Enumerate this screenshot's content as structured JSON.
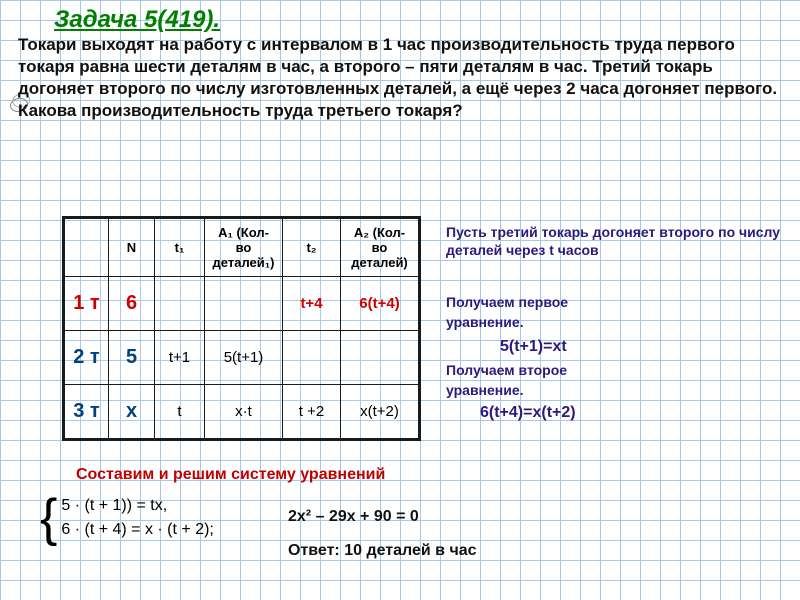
{
  "colors": {
    "title": "#008000",
    "problem_text": "#111111",
    "row1_label": "#d00000",
    "row2_label": "#004080",
    "row3_label": "#004080",
    "note_purple": "#2a1a7a",
    "eqn_purple": "#2a1a7a",
    "cell_red": "#d00000",
    "cell_blue_bold": "#004080",
    "compose": "#c00000",
    "answer": "#111111",
    "grid": "#a8c8e8"
  },
  "title": "Задача 5(419).",
  "problem": "Токари выходят на работу с интервалом в 1 час производительность труда первого токаря равна шести деталям в час, а второго – пяти деталям в час. Третий токарь догоняет второго по числу изготовленных деталей, а ещё через 2 часа догоняет первого. Какова производительность труда третьего токаря?",
  "problem_indent": "190px",
  "table": {
    "headers": [
      "",
      "N",
      "t₁",
      "A₁ (Кол-во деталей₁)",
      "t₂",
      "A₂ (Кол-во деталей)"
    ],
    "rows": [
      {
        "label": "1 т",
        "label_color": "row1_label",
        "cells": [
          "6",
          "",
          "",
          "t+4",
          "6(t+4)"
        ],
        "cell_colors": [
          "cell_red",
          null,
          null,
          "cell_red",
          "cell_red"
        ]
      },
      {
        "label": "2 т",
        "label_color": "row2_label",
        "cells": [
          "5",
          "t+1",
          "5(t+1)",
          "",
          ""
        ],
        "cell_colors": [
          "cell_blue_bold",
          null,
          null,
          null,
          null
        ]
      },
      {
        "label": "3 т",
        "label_color": "row3_label",
        "cells": [
          "x",
          "t",
          "x·t",
          "t +2",
          "x(t+2)"
        ],
        "cell_colors": [
          "cell_blue_bold",
          null,
          null,
          null,
          null
        ]
      }
    ]
  },
  "notes": {
    "n1": "Пусть третий токарь догоняет второго по числу деталей через t часов",
    "n2a": "Получаем первое",
    "n2b": "уравнение.",
    "eq1": "5(t+1)=xt",
    "n3a": "Получаем второе",
    "n3b": "уравнение.",
    "eq2": "6(t+4)=x(t+2)"
  },
  "compose": "Составим и решим систему уравнений",
  "system": {
    "line1": "5 · (t + 1)) = tx,",
    "line2": "6 · (t + 4) = x · (t + 2);"
  },
  "quadratic": "2x² – 29x + 90 = 0",
  "answer": "Ответ: 10 деталей в час"
}
